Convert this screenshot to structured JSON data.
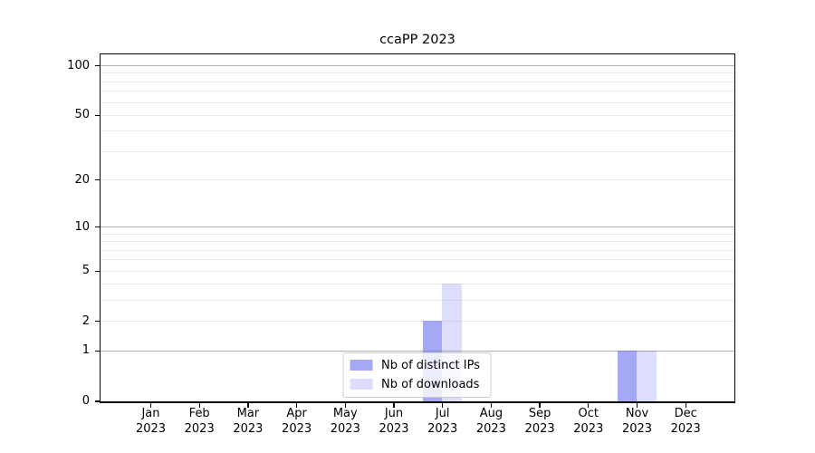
{
  "chart_data": {
    "type": "bar",
    "title": "ccaPP 2023",
    "categories": [
      "Jan 2023",
      "Feb 2023",
      "Mar 2023",
      "Apr 2023",
      "May 2023",
      "Jun 2023",
      "Jul 2023",
      "Aug 2023",
      "Sep 2023",
      "Oct 2023",
      "Nov 2023",
      "Dec 2023"
    ],
    "series": [
      {
        "name": "Nb of distinct IPs",
        "color": "rgba(100,105,238,0.58)",
        "values": [
          0,
          0,
          0,
          0,
          0,
          0,
          2,
          0,
          0,
          0,
          1,
          0
        ]
      },
      {
        "name": "Nb of downloads",
        "color": "rgba(100,105,238,0.22)",
        "values": [
          0,
          0,
          0,
          0,
          0,
          0,
          4,
          0,
          0,
          0,
          1,
          0
        ]
      }
    ],
    "xlabel": "",
    "ylabel": "",
    "yscale": "log1p",
    "ylim": [
      0,
      117
    ],
    "y_tick_labels": [
      0,
      1,
      2,
      5,
      10,
      20,
      50,
      100
    ],
    "y_major_gridlines": [
      1,
      10,
      100
    ],
    "y_minor_gridlines": [
      2,
      3,
      4,
      5,
      6,
      7,
      8,
      9,
      20,
      30,
      40,
      50,
      60,
      70,
      80,
      90
    ],
    "grid": true,
    "legend_position": "lower-center-inside",
    "colors": {
      "major_grid": "#b0b0b0",
      "minor_grid": "#ebebeb",
      "spine": "#000000",
      "text": "#000000",
      "legend_border": "#cccccc",
      "legend_background": "rgba(255,255,255,0.8)"
    }
  }
}
